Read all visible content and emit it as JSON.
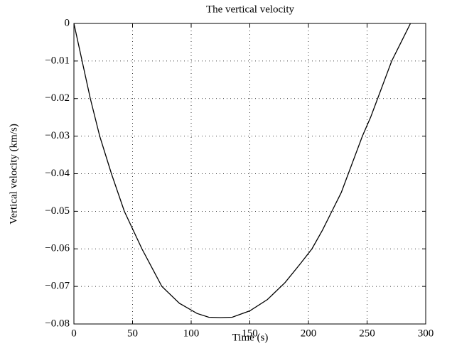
{
  "chart_data": {
    "type": "line",
    "title": "The vertical velocity",
    "xlabel": "Time (s)",
    "ylabel": "Vertical velocity (km/s)",
    "x": [
      0,
      7,
      14,
      22,
      32,
      43,
      58,
      75,
      90,
      105,
      115,
      125,
      135,
      150,
      165,
      180,
      193,
      203,
      212,
      220,
      228,
      234,
      240,
      246,
      253,
      259,
      265,
      271,
      279,
      287
    ],
    "series": [
      {
        "name": "velocity",
        "color": "#000000",
        "values": [
          0,
          -0.01,
          -0.02,
          -0.03,
          -0.04,
          -0.05,
          -0.06,
          -0.07,
          -0.0745,
          -0.0772,
          -0.0782,
          -0.0783,
          -0.0782,
          -0.0765,
          -0.0735,
          -0.069,
          -0.064,
          -0.06,
          -0.055,
          -0.05,
          -0.045,
          -0.04,
          -0.035,
          -0.03,
          -0.025,
          -0.02,
          -0.015,
          -0.01,
          -0.005,
          0
        ]
      }
    ],
    "xlim": [
      0,
      300
    ],
    "xticks": [
      0,
      50,
      100,
      150,
      200,
      250,
      300
    ],
    "ylim": [
      -0.08,
      0
    ],
    "yticks": [
      {
        "value": -0.08,
        "label": "−0.08"
      },
      {
        "value": -0.07,
        "label": "−0.07"
      },
      {
        "value": -0.06,
        "label": "−0.06"
      },
      {
        "value": -0.05,
        "label": "−0.05"
      },
      {
        "value": -0.04,
        "label": "−0.04"
      },
      {
        "value": -0.03,
        "label": "−0.03"
      },
      {
        "value": -0.02,
        "label": "−0.02"
      },
      {
        "value": -0.01,
        "label": "−0.01"
      },
      0
    ],
    "grid": true
  }
}
